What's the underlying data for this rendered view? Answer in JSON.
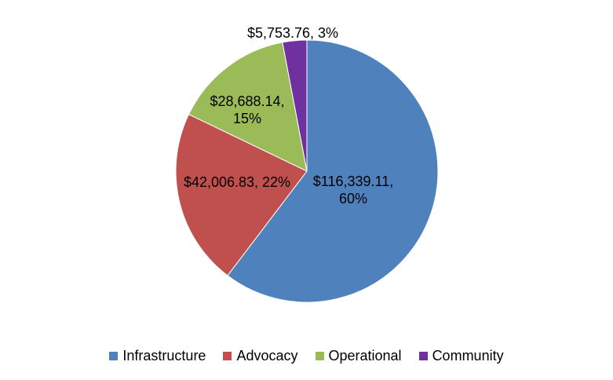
{
  "chart_data": {
    "type": "pie",
    "title": "",
    "categories": [
      "Infrastructure",
      "Advocacy",
      "Operational",
      "Community"
    ],
    "values": [
      116339.11,
      42006.83,
      28688.14,
      5753.76
    ],
    "percent": [
      60,
      22,
      15,
      3
    ],
    "labels": [
      [
        "$116,339.11,",
        "60%"
      ],
      [
        "$42,006.83, 22%"
      ],
      [
        "$28,688.14,",
        "15%"
      ],
      [
        "$5,753.76, 3%"
      ]
    ],
    "colors": [
      "#4F81BD",
      "#C0504D",
      "#9BBB59",
      "#7030A0"
    ],
    "legend_position": "bottom",
    "start_angle": "top, clockwise"
  }
}
